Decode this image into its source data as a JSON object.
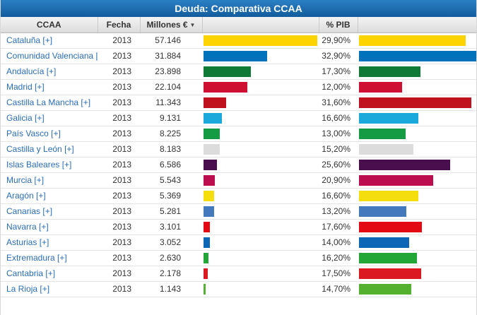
{
  "title": "Deuda: Comparativa CCAA",
  "table": {
    "headers": {
      "ccaa": "CCAA",
      "fecha": "Fecha",
      "millones": "Millones €",
      "pib": "% PIB"
    },
    "sort_icon": "▼",
    "expand_label": "[+]",
    "link_color": "#2a6db5",
    "max_millones": 57146,
    "max_pib": 32.9,
    "rows": [
      {
        "name": "Cataluña",
        "fecha": "2013",
        "millones": "57.146",
        "millones_value": 57146,
        "pib": "29,90%",
        "pib_value": 29.9,
        "color": "#fdd400"
      },
      {
        "name": "Comunidad Valenciana",
        "fecha": "2013",
        "millones": "31.884",
        "millones_value": 31884,
        "pib": "32,90%",
        "pib_value": 32.9,
        "color": "#0072bc"
      },
      {
        "name": "Andalucía",
        "fecha": "2013",
        "millones": "23.898",
        "millones_value": 23898,
        "pib": "17,30%",
        "pib_value": 17.3,
        "color": "#0e7a35"
      },
      {
        "name": "Madrid",
        "fecha": "2013",
        "millones": "22.104",
        "millones_value": 22104,
        "pib": "12,00%",
        "pib_value": 12.0,
        "color": "#ce1132"
      },
      {
        "name": "Castilla La Mancha",
        "fecha": "2013",
        "millones": "11.343",
        "millones_value": 11343,
        "pib": "31,60%",
        "pib_value": 31.6,
        "color": "#c0111f"
      },
      {
        "name": "Galicia",
        "fecha": "2013",
        "millones": "9.131",
        "millones_value": 9131,
        "pib": "16,60%",
        "pib_value": 16.6,
        "color": "#1ba8db"
      },
      {
        "name": "País Vasco",
        "fecha": "2013",
        "millones": "8.225",
        "millones_value": 8225,
        "pib": "13,00%",
        "pib_value": 13.0,
        "color": "#169b45"
      },
      {
        "name": "Castilla y León",
        "fecha": "2013",
        "millones": "8.183",
        "millones_value": 8183,
        "pib": "15,20%",
        "pib_value": 15.2,
        "color": "#dcdcdc"
      },
      {
        "name": "Islas Baleares",
        "fecha": "2013",
        "millones": "6.586",
        "millones_value": 6586,
        "pib": "25,60%",
        "pib_value": 25.6,
        "color": "#4a0d4e"
      },
      {
        "name": "Murcia",
        "fecha": "2013",
        "millones": "5.543",
        "millones_value": 5543,
        "pib": "20,90%",
        "pib_value": 20.9,
        "color": "#bc0e4f"
      },
      {
        "name": "Aragón",
        "fecha": "2013",
        "millones": "5.369",
        "millones_value": 5369,
        "pib": "16,60%",
        "pib_value": 16.6,
        "color": "#f5de0e"
      },
      {
        "name": "Canarias",
        "fecha": "2013",
        "millones": "5.281",
        "millones_value": 5281,
        "pib": "13,20%",
        "pib_value": 13.2,
        "color": "#4479bd"
      },
      {
        "name": "Navarra",
        "fecha": "2013",
        "millones": "3.101",
        "millones_value": 3101,
        "pib": "17,60%",
        "pib_value": 17.6,
        "color": "#e30a13"
      },
      {
        "name": "Asturias",
        "fecha": "2013",
        "millones": "3.052",
        "millones_value": 3052,
        "pib": "14,00%",
        "pib_value": 14.0,
        "color": "#0c68b6"
      },
      {
        "name": "Extremadura",
        "fecha": "2013",
        "millones": "2.630",
        "millones_value": 2630,
        "pib": "16,20%",
        "pib_value": 16.2,
        "color": "#23a638"
      },
      {
        "name": "Cantabria",
        "fecha": "2013",
        "millones": "2.178",
        "millones_value": 2178,
        "pib": "17,50%",
        "pib_value": 17.5,
        "color": "#da1a20"
      },
      {
        "name": "La Rioja",
        "fecha": "2013",
        "millones": "1.143",
        "millones_value": 1143,
        "pib": "14,70%",
        "pib_value": 14.7,
        "color": "#54b12f"
      }
    ]
  },
  "chart_data": {
    "type": "bar",
    "categories": [
      "Cataluña",
      "Comunidad Valenciana",
      "Andalucía",
      "Madrid",
      "Castilla La Mancha",
      "Galicia",
      "País Vasco",
      "Castilla y León",
      "Islas Baleares",
      "Murcia",
      "Aragón",
      "Canarias",
      "Navarra",
      "Asturias",
      "Extremadura",
      "Cantabria",
      "La Rioja"
    ],
    "series": [
      {
        "name": "Millones €",
        "values": [
          57146,
          31884,
          23898,
          22104,
          11343,
          9131,
          8225,
          8183,
          6586,
          5543,
          5369,
          5281,
          3101,
          3052,
          2630,
          2178,
          1143
        ]
      },
      {
        "name": "% PIB",
        "values": [
          29.9,
          32.9,
          17.3,
          12.0,
          31.6,
          16.6,
          13.0,
          15.2,
          25.6,
          20.9,
          16.6,
          13.2,
          17.6,
          14.0,
          16.2,
          17.5,
          14.7
        ]
      }
    ],
    "title": "Deuda: Comparativa CCAA",
    "xlabel": "",
    "ylabel": "",
    "year": "2013"
  }
}
